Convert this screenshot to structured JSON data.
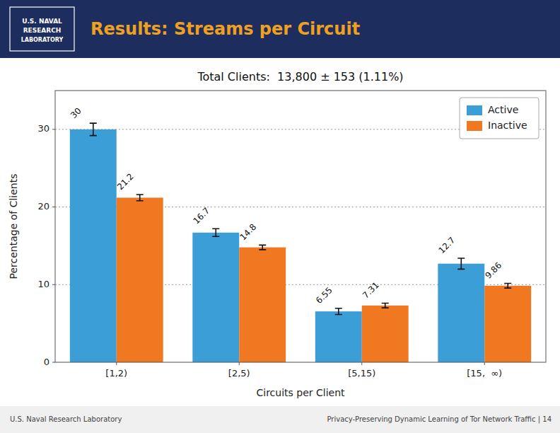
{
  "chart_data": {
    "type": "bar",
    "title": "Results: Streams per Circuit",
    "subtitle": "Total Clients:  13,800 ± 153 (1.11%)",
    "xlabel": "Circuits per Client",
    "ylabel": "Percentage of Clients",
    "annotations": [
      "U.S. NAVAL",
      "RESEARCH",
      "LABORATORY",
      "U.S. Naval Research Laboratory",
      "Privacy-Preserving Dynamic Learning of Tor Network Traffic | 14"
    ],
    "categories": [
      "[1,2)",
      "[2,5)",
      "[5,15)",
      "[15,  ∞)"
    ],
    "series": [
      {
        "name": "Active",
        "color": "#3c9ed6",
        "values": [
          30.0,
          16.7,
          6.55,
          12.7
        ],
        "errors": [
          0.8,
          0.5,
          0.4,
          0.7
        ]
      },
      {
        "name": "Inactive",
        "color": "#f07820",
        "values": [
          21.2,
          14.8,
          7.31,
          9.86
        ],
        "errors": [
          0.4,
          0.3,
          0.3,
          0.3
        ]
      }
    ],
    "ylim": [
      0,
      35
    ],
    "yticks": [
      0,
      10,
      20,
      30
    ],
    "grid": true,
    "legend": "upper right",
    "data_labels": true
  }
}
